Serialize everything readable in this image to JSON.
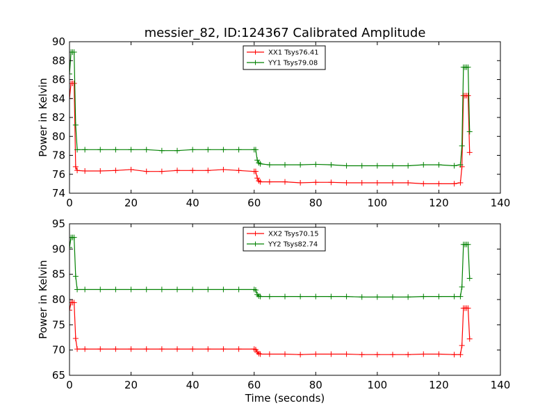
{
  "title": "messier_82, ID:124367 Calibrated Amplitude",
  "chart_data": [
    {
      "type": "line",
      "ylabel": "Power in Kelvin",
      "xlabel": "",
      "xlim": [
        0,
        140
      ],
      "ylim": [
        74,
        90
      ],
      "xticks": [
        "0",
        "20",
        "40",
        "60",
        "80",
        "100",
        "120",
        "140"
      ],
      "yticks": [
        "74",
        "76",
        "78",
        "80",
        "82",
        "84",
        "86",
        "88",
        "90"
      ],
      "legend_position": "top-center",
      "series": [
        {
          "name": "XX1 Tsys76.41",
          "color": "#ff0000",
          "x": [
            0,
            0.5,
            1,
            1.5,
            2,
            2.5,
            5,
            10,
            15,
            20,
            25,
            30,
            35,
            40,
            45,
            50,
            55,
            60,
            60.5,
            61,
            61.5,
            62,
            65,
            70,
            75,
            80,
            85,
            90,
            95,
            100,
            105,
            110,
            115,
            120,
            125,
            127,
            127.5,
            128,
            128.5,
            129,
            129.5,
            130
          ],
          "y": [
            84.0,
            85.6,
            85.6,
            85.6,
            76.8,
            76.4,
            76.35,
            76.35,
            76.4,
            76.5,
            76.3,
            76.3,
            76.4,
            76.4,
            76.4,
            76.5,
            76.4,
            76.3,
            76.3,
            75.6,
            75.3,
            75.2,
            75.2,
            75.2,
            75.1,
            75.15,
            75.15,
            75.1,
            75.1,
            75.1,
            75.1,
            75.1,
            75.0,
            75.0,
            75.0,
            75.1,
            76.8,
            84.3,
            84.3,
            84.3,
            84.3,
            78.3
          ]
        },
        {
          "name": "YY1 Tsys79.08",
          "color": "#008000",
          "x": [
            0,
            0.5,
            1,
            1.5,
            2,
            2.5,
            5,
            10,
            15,
            20,
            25,
            30,
            35,
            40,
            45,
            50,
            55,
            60,
            60.5,
            61,
            61.5,
            62,
            65,
            70,
            75,
            80,
            85,
            90,
            95,
            100,
            105,
            110,
            115,
            120,
            125,
            127,
            127.5,
            128,
            128.5,
            129,
            129.5,
            130
          ],
          "y": [
            86.6,
            88.9,
            88.9,
            88.9,
            81.2,
            78.6,
            78.6,
            78.6,
            78.6,
            78.6,
            78.6,
            78.5,
            78.5,
            78.6,
            78.6,
            78.6,
            78.6,
            78.6,
            78.6,
            77.5,
            77.2,
            77.1,
            77.0,
            77.0,
            77.0,
            77.05,
            77.0,
            76.9,
            76.9,
            76.9,
            76.9,
            76.9,
            77.0,
            77.0,
            76.9,
            77.0,
            79.0,
            87.3,
            87.3,
            87.3,
            87.3,
            80.5
          ]
        }
      ]
    },
    {
      "type": "line",
      "ylabel": "Power in Kelvin",
      "xlabel": "Time (seconds)",
      "xlim": [
        0,
        140
      ],
      "ylim": [
        65,
        95
      ],
      "xticks": [
        "0",
        "20",
        "40",
        "60",
        "80",
        "100",
        "120",
        "140"
      ],
      "yticks": [
        "65",
        "70",
        "75",
        "80",
        "85",
        "90",
        "95"
      ],
      "legend_position": "top-center",
      "series": [
        {
          "name": "XX2 Tsys70.15",
          "color": "#ff0000",
          "x": [
            0,
            0.5,
            1,
            1.5,
            2,
            2.5,
            5,
            10,
            15,
            20,
            25,
            30,
            35,
            40,
            45,
            50,
            55,
            60,
            60.5,
            61,
            61.5,
            62,
            65,
            70,
            75,
            80,
            85,
            90,
            95,
            100,
            105,
            110,
            115,
            120,
            125,
            127,
            127.5,
            128,
            128.5,
            129,
            129.5,
            130
          ],
          "y": [
            77.9,
            79.4,
            79.4,
            79.4,
            72.3,
            70.2,
            70.2,
            70.2,
            70.2,
            70.2,
            70.2,
            70.2,
            70.2,
            70.2,
            70.2,
            70.2,
            70.2,
            70.2,
            70.1,
            69.6,
            69.3,
            69.2,
            69.2,
            69.2,
            69.1,
            69.2,
            69.2,
            69.2,
            69.1,
            69.1,
            69.1,
            69.1,
            69.2,
            69.2,
            69.1,
            69.1,
            70.9,
            78.3,
            78.3,
            78.3,
            78.3,
            72.2
          ]
        },
        {
          "name": "YY2 Tsys82.74",
          "color": "#008000",
          "x": [
            0,
            0.5,
            1,
            1.5,
            2,
            2.5,
            5,
            10,
            15,
            20,
            25,
            30,
            35,
            40,
            45,
            50,
            55,
            60,
            60.5,
            61,
            61.5,
            62,
            65,
            70,
            75,
            80,
            85,
            90,
            95,
            100,
            105,
            110,
            115,
            120,
            125,
            127,
            127.5,
            128,
            128.5,
            129,
            129.5,
            130
          ],
          "y": [
            90.3,
            92.3,
            92.3,
            92.3,
            84.6,
            82.0,
            82.0,
            82.0,
            82.0,
            82.0,
            82.0,
            82.0,
            82.0,
            82.0,
            82.0,
            82.0,
            82.0,
            82.0,
            81.9,
            81.0,
            80.7,
            80.6,
            80.6,
            80.6,
            80.6,
            80.6,
            80.6,
            80.6,
            80.5,
            80.5,
            80.5,
            80.5,
            80.6,
            80.6,
            80.6,
            80.6,
            82.5,
            90.9,
            90.9,
            90.9,
            90.9,
            84.2
          ]
        }
      ]
    }
  ]
}
